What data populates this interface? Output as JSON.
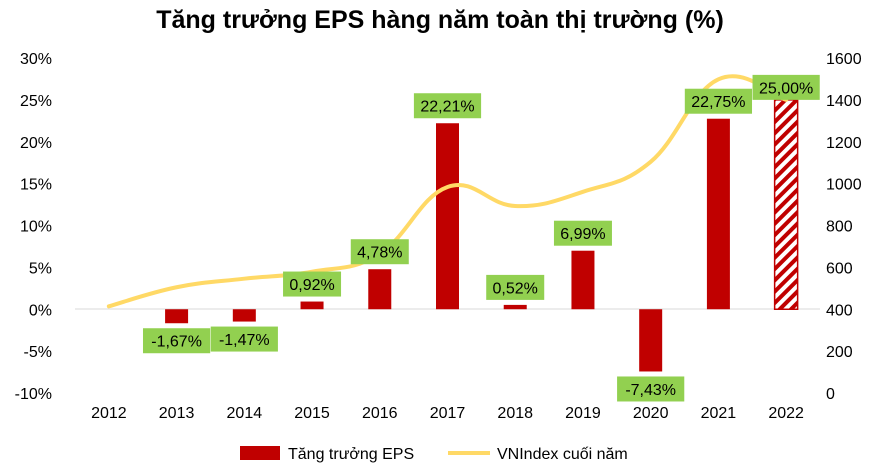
{
  "chart_data": {
    "type": "bar",
    "title": "Tăng trưởng EPS hàng năm toàn thị trường (%)",
    "categories": [
      "2012",
      "2013",
      "2014",
      "2015",
      "2016",
      "2017",
      "2018",
      "2019",
      "2020",
      "2021",
      "2022"
    ],
    "series": [
      {
        "name": "Tăng trưởng EPS",
        "type": "bar",
        "axis": "left",
        "color": "#c00000",
        "values": [
          null,
          -1.67,
          -1.47,
          0.92,
          4.78,
          22.21,
          0.52,
          6.99,
          -7.43,
          22.75,
          25.0
        ],
        "labels": [
          "",
          "-1,67%",
          "-1,47%",
          "0,92%",
          "4,78%",
          "22,21%",
          "0,52%",
          "6,99%",
          "-7,43%",
          "22,75%",
          "25,00%"
        ],
        "hatched": [
          false,
          false,
          false,
          false,
          false,
          false,
          false,
          false,
          false,
          false,
          true
        ]
      },
      {
        "name": "VNIndex cuối năm",
        "type": "line",
        "axis": "right",
        "color": "#ffd966",
        "values": [
          414,
          505,
          546,
          579,
          665,
          984,
          893,
          961,
          1104,
          1498,
          1400
        ]
      }
    ],
    "y_left": {
      "min": -10,
      "max": 30,
      "step": 5,
      "ticks": [
        "-10%",
        "-5%",
        "0%",
        "5%",
        "10%",
        "15%",
        "20%",
        "25%",
        "30%"
      ]
    },
    "y_right": {
      "min": 0,
      "max": 1600,
      "step": 200,
      "ticks": [
        "0",
        "200",
        "400",
        "600",
        "800",
        "1000",
        "1200",
        "1400",
        "1600"
      ]
    },
    "label_box_color": "#92d050",
    "grid": false,
    "legend_position": "bottom"
  }
}
